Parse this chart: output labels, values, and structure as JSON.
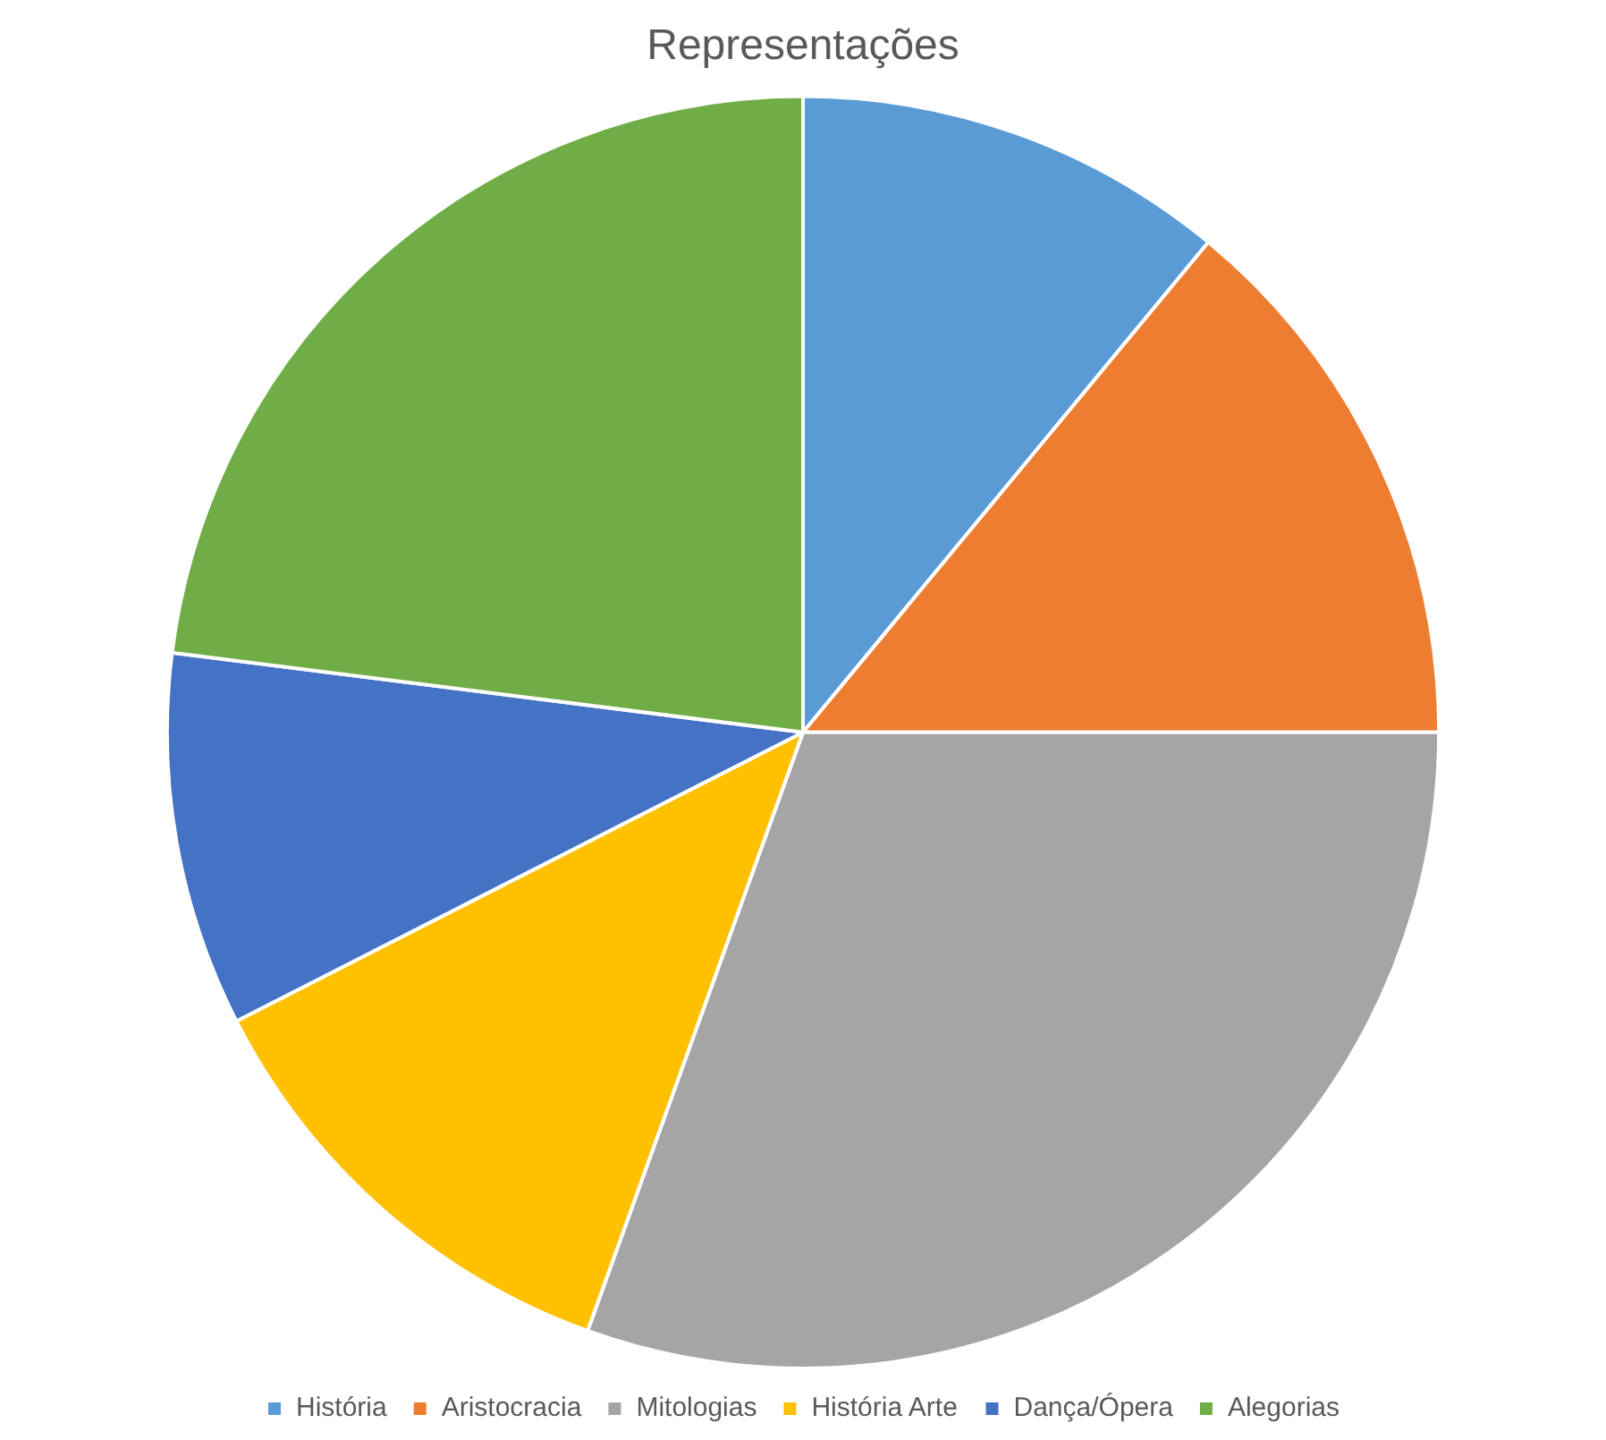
{
  "chart_data": {
    "type": "pie",
    "title": "Representações",
    "categories": [
      "História",
      "Aristocracia",
      "Mitologias",
      "História Arte",
      "Dança/Ópera",
      "Alegorias"
    ],
    "values": [
      11,
      14,
      30.5,
      12,
      9.5,
      23
    ],
    "colors": [
      "#5b9bd5",
      "#ed7d31",
      "#a5a5a5",
      "#ffc000",
      "#4472c4",
      "#70ad47"
    ],
    "legend": "bottom"
  }
}
